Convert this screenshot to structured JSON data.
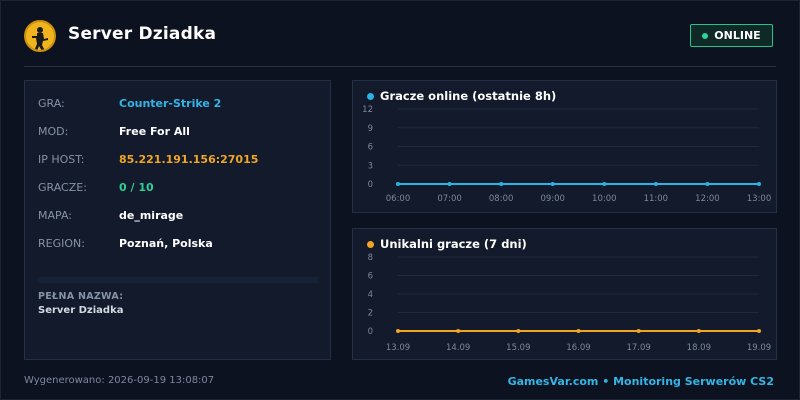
{
  "header": {
    "title": "Server Dziadka",
    "status": "ONLINE",
    "logo_icon": "counter-strike-logo-icon"
  },
  "info": {
    "rows": [
      {
        "key": "GRA:",
        "value": "Counter-Strike 2"
      },
      {
        "key": "MOD:",
        "value": "Free For All"
      },
      {
        "key": "IP HOST:",
        "value": "85.221.191.156:27015"
      },
      {
        "key": "GRACZE:",
        "value": "0 / 10"
      },
      {
        "key": "MAPA:",
        "value": "de_mirage"
      },
      {
        "key": "REGION:",
        "value": "Poznań, Polska"
      }
    ],
    "fullname_label": "PEŁNA NAZWA:",
    "fullname_value": "Server Dziadka"
  },
  "charts": {
    "online_title": "Gracze online (ostatnie 8h)",
    "unique_title": "Unikalni gracze (7 dni)"
  },
  "chart_data": [
    {
      "type": "line",
      "title": "Gracze online (ostatnie 8h)",
      "x": [
        "06:00",
        "07:00",
        "08:00",
        "09:00",
        "10:00",
        "11:00",
        "12:00",
        "13:00"
      ],
      "series": [
        {
          "values": [
            0,
            0,
            0,
            0,
            0,
            0,
            0,
            0
          ]
        }
      ],
      "y_ticks": [
        0,
        3,
        6,
        9,
        12
      ],
      "ylim": [
        0,
        12
      ],
      "color": "#2ab3e3",
      "grid": true
    },
    {
      "type": "line",
      "title": "Unikalni gracze (7 dni)",
      "x": [
        "13.09",
        "14.09",
        "15.09",
        "16.09",
        "17.09",
        "18.09",
        "19.09"
      ],
      "series": [
        {
          "values": [
            0,
            0,
            0,
            0,
            0,
            0,
            0
          ]
        }
      ],
      "y_ticks": [
        0,
        2,
        4,
        6,
        8
      ],
      "ylim": [
        0,
        8
      ],
      "color": "#f0a526",
      "grid": true
    }
  ],
  "footer": {
    "generated": "Wygenerowano: 2026-09-19 13:08:07",
    "brand": "GamesVar.com • Monitoring Serwerów CS2"
  },
  "colors": {
    "background": "#0d1220",
    "accent_blue": "#34b5e6",
    "accent_orange": "#f0a526",
    "online_green": "#2fcf96"
  }
}
